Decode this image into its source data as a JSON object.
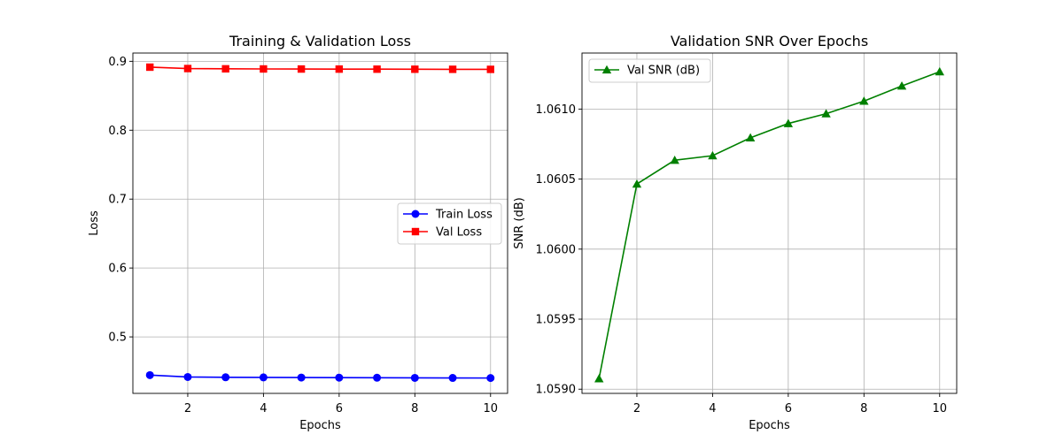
{
  "chart_data": [
    {
      "type": "line",
      "title": "Training & Validation Loss",
      "xlabel": "Epochs",
      "ylabel": "Loss",
      "x": [
        1,
        2,
        3,
        4,
        5,
        6,
        7,
        8,
        9,
        10
      ],
      "xlim": [
        0.55,
        10.45
      ],
      "ylim": [
        0.418,
        0.912
      ],
      "xticks": [
        2,
        4,
        6,
        8,
        10
      ],
      "yticks": [
        0.5,
        0.6,
        0.7,
        0.8,
        0.9
      ],
      "xtick_labels": [
        "2",
        "4",
        "6",
        "8",
        "10"
      ],
      "ytick_labels": [
        "0.5",
        "0.6",
        "0.7",
        "0.8",
        "0.9"
      ],
      "grid": true,
      "legend": "center-right",
      "series": [
        {
          "name": "Train Loss",
          "color": "#0000ff",
          "marker": "circle",
          "values": [
            0.4445,
            0.4418,
            0.4414,
            0.4412,
            0.441,
            0.4408,
            0.4407,
            0.4405,
            0.4404,
            0.4403
          ]
        },
        {
          "name": "Val Loss",
          "color": "#ff0000",
          "marker": "square",
          "values": [
            0.8915,
            0.8895,
            0.8891,
            0.8889,
            0.8888,
            0.8887,
            0.8886,
            0.8885,
            0.8884,
            0.8883
          ]
        }
      ]
    },
    {
      "type": "line",
      "title": "Validation SNR Over Epochs",
      "xlabel": "Epochs",
      "ylabel": "SNR (dB)",
      "x": [
        1,
        2,
        3,
        4,
        5,
        6,
        7,
        8,
        9,
        10
      ],
      "xlim": [
        0.55,
        10.45
      ],
      "ylim": [
        1.05897,
        1.0614
      ],
      "xticks": [
        2,
        4,
        6,
        8,
        10
      ],
      "yticks": [
        1.059,
        1.0595,
        1.06,
        1.0605,
        1.061
      ],
      "xtick_labels": [
        "2",
        "4",
        "6",
        "8",
        "10"
      ],
      "ytick_labels": [
        "1.0590",
        "1.0595",
        "1.0600",
        "1.0605",
        "1.0610"
      ],
      "grid": true,
      "legend": "top-left",
      "series": [
        {
          "name": "Val SNR (dB)",
          "color": "#008000",
          "marker": "triangle",
          "values": [
            1.059075,
            1.060465,
            1.060635,
            1.060667,
            1.060795,
            1.060897,
            1.060967,
            1.061057,
            1.061165,
            1.061267
          ]
        }
      ]
    }
  ]
}
